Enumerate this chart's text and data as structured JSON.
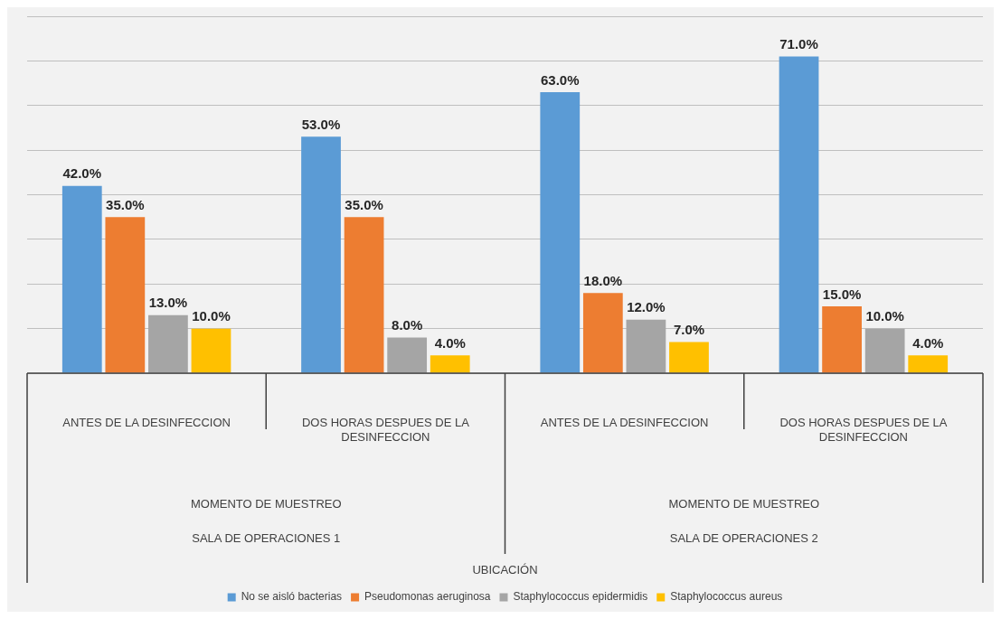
{
  "chart_data": {
    "type": "bar",
    "categories": [
      "ANTES DE LA DESINFECCION",
      "DOS HORAS DESPUES DE LA DESINFECCION",
      "ANTES DE LA DESINFECCION",
      "DOS HORAS DESPUES DE LA DESINFECCION"
    ],
    "series": [
      {
        "name": "No se aisló bacterias",
        "color": "#5b9bd5",
        "values": [
          42,
          53,
          63,
          71
        ],
        "value_labels": [
          "42.0%",
          "53.0%",
          "63.0%",
          "71.0%"
        ]
      },
      {
        "name": "Pseudomonas aeruginosa",
        "color": "#ed7d31",
        "values": [
          35,
          35,
          18,
          15
        ],
        "value_labels": [
          "35.0%",
          "35.0%",
          "18.0%",
          "15.0%"
        ]
      },
      {
        "name": "Staphylococcus epidermidis",
        "color": "#a5a5a5",
        "values": [
          13,
          8,
          12,
          10
        ],
        "value_labels": [
          "13.0%",
          "8.0%",
          "12.0%",
          "10.0%"
        ]
      },
      {
        "name": "Staphylococcus aureus",
        "color": "#ffc000",
        "values": [
          10,
          4,
          7,
          4
        ],
        "value_labels": [
          "10.0%",
          "4.0%",
          "7.0%",
          "4.0%"
        ]
      }
    ],
    "annotations": [
      "MOMENTO DE MUESTREO",
      "MOMENTO DE MUESTREO",
      "SALA DE OPERACIONES 1",
      "SALA DE OPERACIONES 2",
      "UBICACIÓN"
    ],
    "ylim": [
      0,
      80
    ],
    "yticks": [
      {
        "value": 0,
        "label": null
      },
      {
        "value": 10,
        "label": null
      },
      {
        "value": 20,
        "label": null
      },
      {
        "value": 30,
        "label": null
      },
      {
        "value": 40,
        "label": null
      },
      {
        "value": 50,
        "label": null
      },
      {
        "value": 60,
        "label": null
      },
      {
        "value": 70,
        "label": null
      },
      {
        "value": 80,
        "label": null
      }
    ],
    "tick_labels": "x",
    "grid": "y",
    "legend": "bottom"
  }
}
